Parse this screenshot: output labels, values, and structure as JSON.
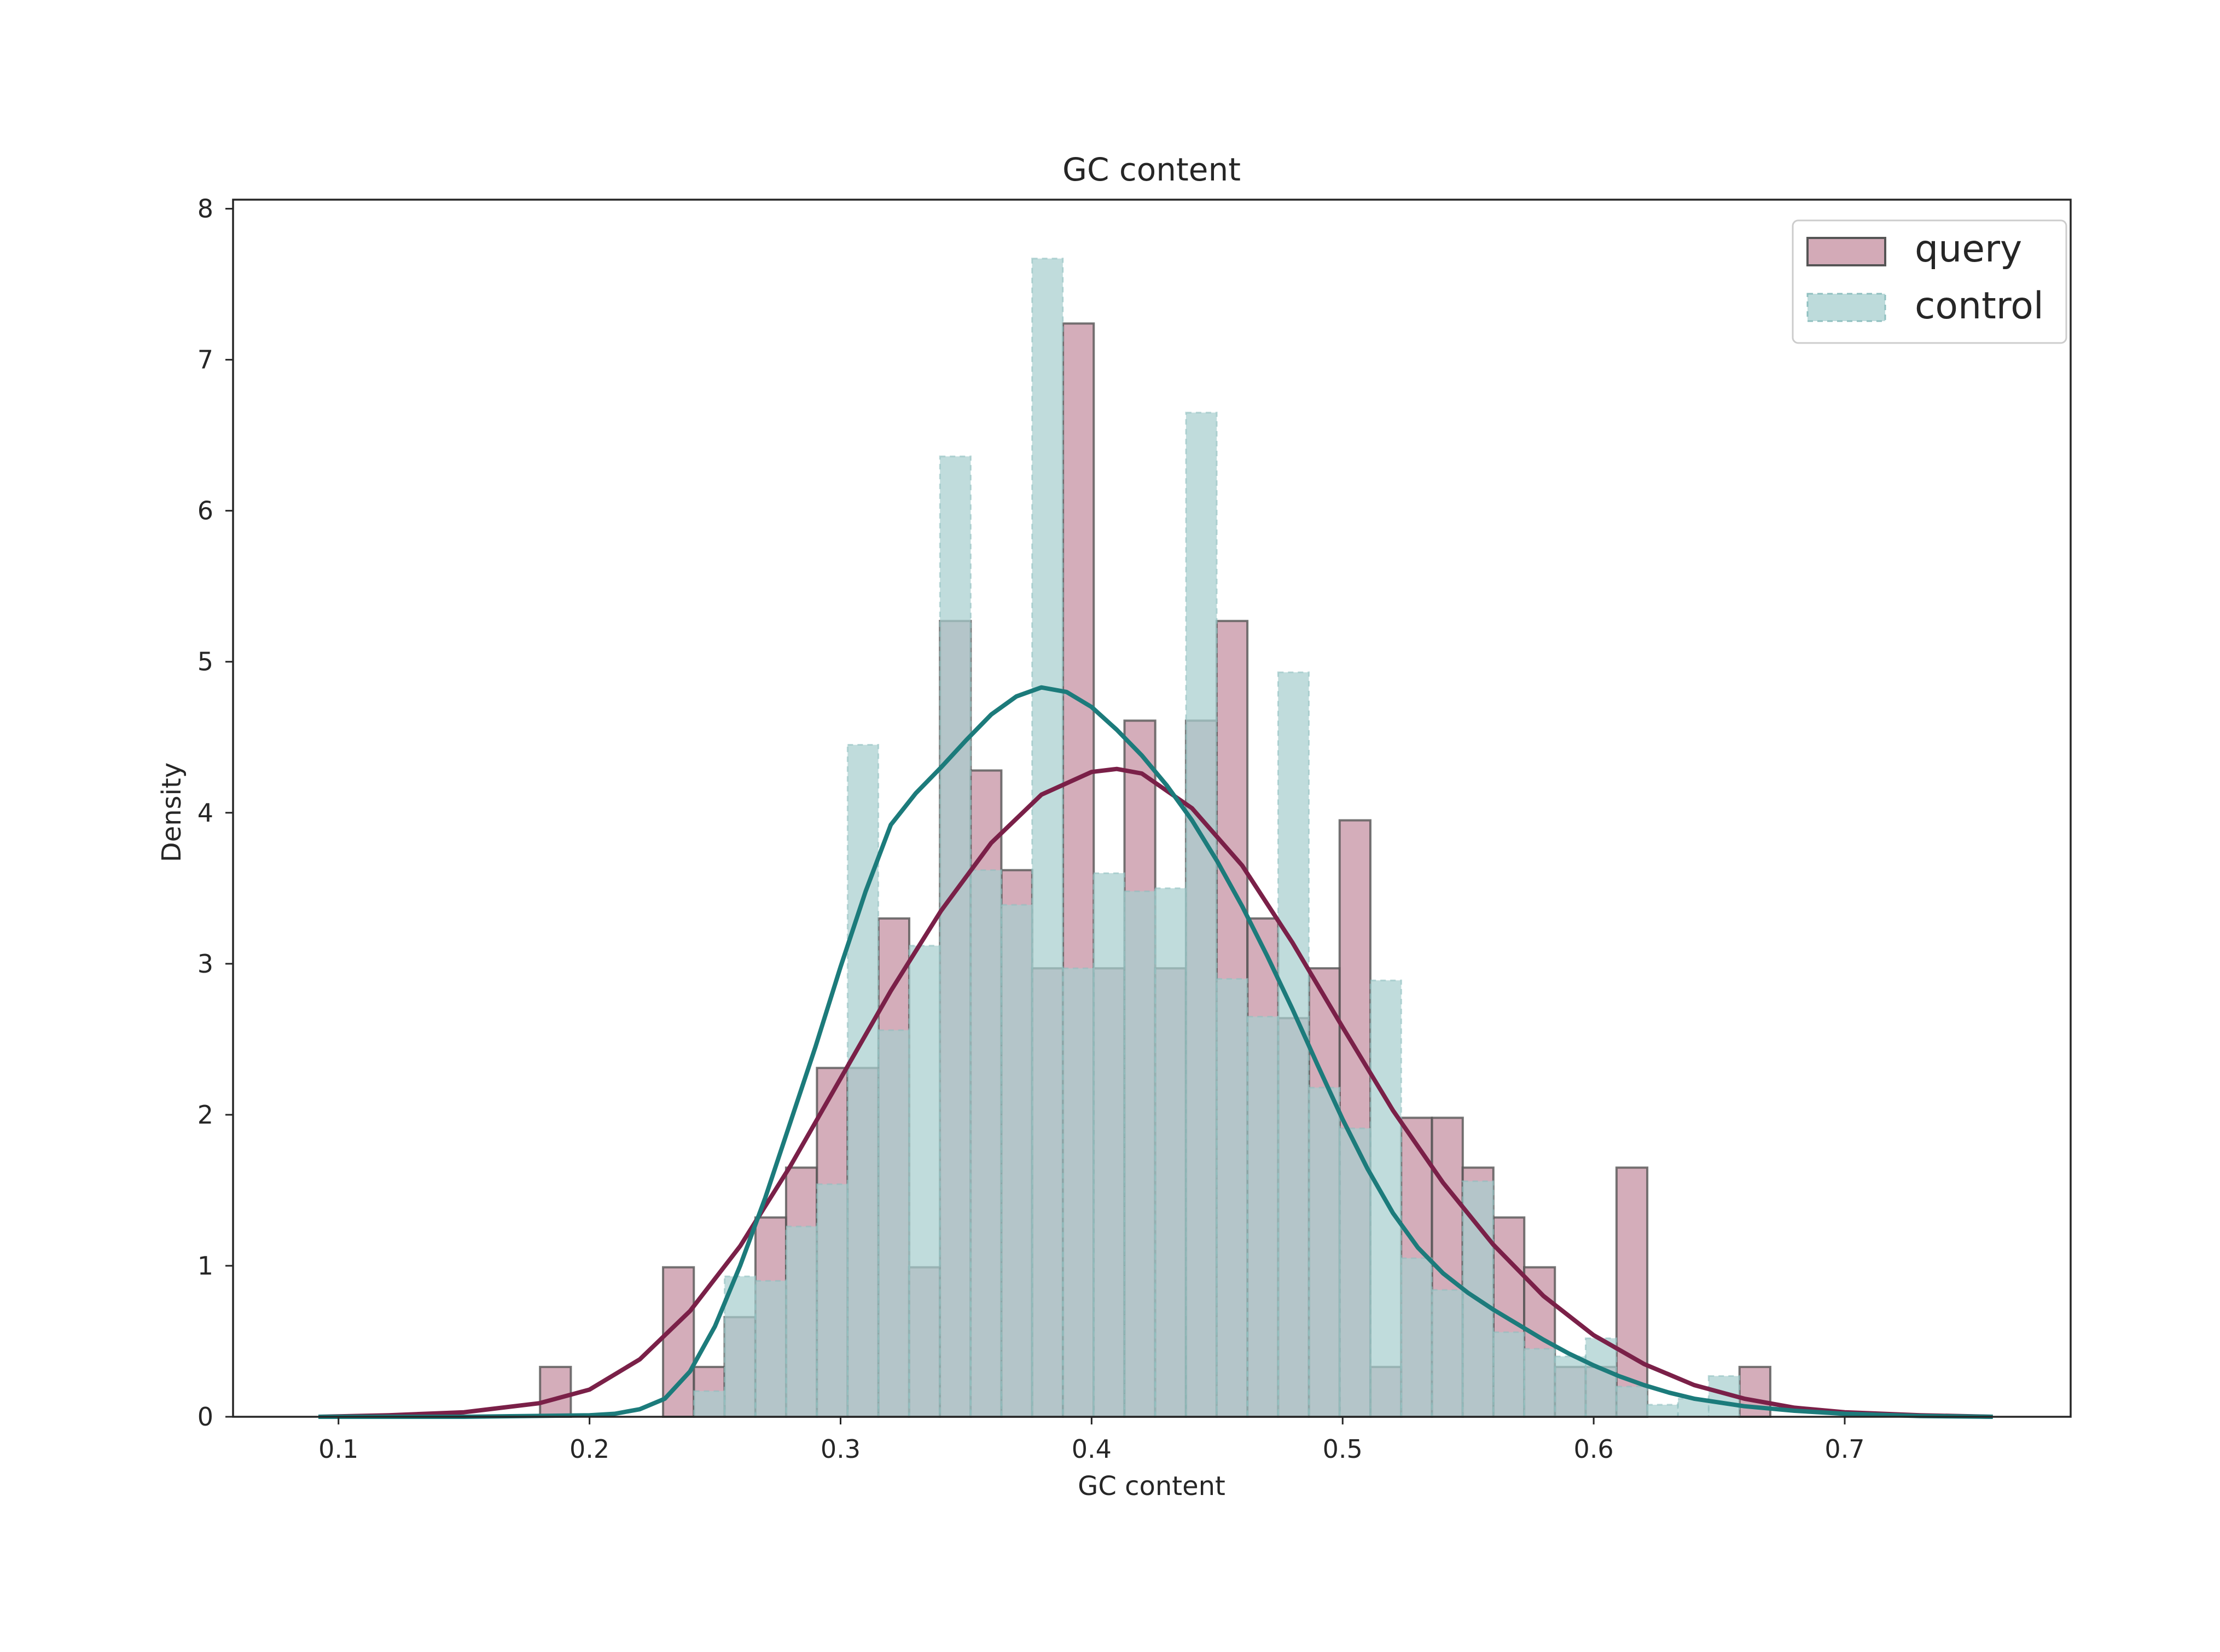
{
  "chart_data": {
    "type": "histogram",
    "title": "GC content",
    "xlabel": "GC content",
    "ylabel": "Density",
    "xlim": [
      0.058,
      0.79
    ],
    "ylim": [
      0,
      8.06
    ],
    "xticks": [
      0.1,
      0.2,
      0.3,
      0.4,
      0.5,
      0.6,
      0.7
    ],
    "xtick_labels": [
      "0.1",
      "0.2",
      "0.3",
      "0.4",
      "0.5",
      "0.6",
      "0.7"
    ],
    "yticks": [
      0,
      1,
      2,
      3,
      4,
      5,
      6,
      7,
      8
    ],
    "ytick_labels": [
      "0",
      "1",
      "2",
      "3",
      "4",
      "5",
      "6",
      "7",
      "8"
    ],
    "grid": false,
    "legend_position": "upper right",
    "series": [
      {
        "name": "query",
        "kind": "hist+kde",
        "color": "#7a2048",
        "fill": "#c48d9f",
        "edge": "#555555",
        "bin_width": 0.01225,
        "bins": [
          {
            "x0": 0.1803,
            "h": 0.33
          },
          {
            "x0": 0.2293,
            "h": 0.99
          },
          {
            "x0": 0.2416,
            "h": 0.33
          },
          {
            "x0": 0.2538,
            "h": 0.66
          },
          {
            "x0": 0.2661,
            "h": 1.32
          },
          {
            "x0": 0.2783,
            "h": 1.65
          },
          {
            "x0": 0.2906,
            "h": 2.31
          },
          {
            "x0": 0.3028,
            "h": 2.31
          },
          {
            "x0": 0.3151,
            "h": 3.3
          },
          {
            "x0": 0.3273,
            "h": 0.99
          },
          {
            "x0": 0.3396,
            "h": 5.27
          },
          {
            "x0": 0.3518,
            "h": 4.28
          },
          {
            "x0": 0.3641,
            "h": 3.62
          },
          {
            "x0": 0.3763,
            "h": 2.97
          },
          {
            "x0": 0.3886,
            "h": 7.24
          },
          {
            "x0": 0.4008,
            "h": 2.97
          },
          {
            "x0": 0.4131,
            "h": 4.61
          },
          {
            "x0": 0.4253,
            "h": 2.97
          },
          {
            "x0": 0.4376,
            "h": 4.61
          },
          {
            "x0": 0.4498,
            "h": 5.27
          },
          {
            "x0": 0.4621,
            "h": 3.3
          },
          {
            "x0": 0.4743,
            "h": 2.64
          },
          {
            "x0": 0.4866,
            "h": 2.97
          },
          {
            "x0": 0.4988,
            "h": 3.95
          },
          {
            "x0": 0.5111,
            "h": 0.33
          },
          {
            "x0": 0.5233,
            "h": 1.98
          },
          {
            "x0": 0.5356,
            "h": 1.98
          },
          {
            "x0": 0.5478,
            "h": 1.65
          },
          {
            "x0": 0.5601,
            "h": 1.32
          },
          {
            "x0": 0.5723,
            "h": 0.99
          },
          {
            "x0": 0.5846,
            "h": 0.33
          },
          {
            "x0": 0.5968,
            "h": 0.33
          },
          {
            "x0": 0.6091,
            "h": 1.65
          },
          {
            "x0": 0.6581,
            "h": 0.33
          }
        ],
        "kde": [
          [
            0.092,
            0.0
          ],
          [
            0.12,
            0.01
          ],
          [
            0.15,
            0.03
          ],
          [
            0.18,
            0.09
          ],
          [
            0.2,
            0.18
          ],
          [
            0.22,
            0.38
          ],
          [
            0.24,
            0.7
          ],
          [
            0.26,
            1.13
          ],
          [
            0.28,
            1.66
          ],
          [
            0.3,
            2.24
          ],
          [
            0.32,
            2.82
          ],
          [
            0.34,
            3.35
          ],
          [
            0.36,
            3.8
          ],
          [
            0.38,
            4.12
          ],
          [
            0.4,
            4.27
          ],
          [
            0.41,
            4.29
          ],
          [
            0.42,
            4.26
          ],
          [
            0.44,
            4.03
          ],
          [
            0.46,
            3.65
          ],
          [
            0.48,
            3.14
          ],
          [
            0.5,
            2.58
          ],
          [
            0.52,
            2.03
          ],
          [
            0.54,
            1.55
          ],
          [
            0.56,
            1.14
          ],
          [
            0.58,
            0.8
          ],
          [
            0.6,
            0.54
          ],
          [
            0.62,
            0.35
          ],
          [
            0.64,
            0.21
          ],
          [
            0.66,
            0.12
          ],
          [
            0.68,
            0.06
          ],
          [
            0.7,
            0.03
          ],
          [
            0.73,
            0.01
          ],
          [
            0.759,
            0.0
          ]
        ]
      },
      {
        "name": "control",
        "kind": "hist+kde",
        "color": "#1c7b7b",
        "fill": "#a7cfcf",
        "edge": "#a7cfcf",
        "bin_width": 0.01225,
        "bins": [
          {
            "x0": 0.2416,
            "h": 0.17
          },
          {
            "x0": 0.2538,
            "h": 0.93
          },
          {
            "x0": 0.2661,
            "h": 0.9
          },
          {
            "x0": 0.2783,
            "h": 1.26
          },
          {
            "x0": 0.2906,
            "h": 1.54
          },
          {
            "x0": 0.3028,
            "h": 4.45
          },
          {
            "x0": 0.3151,
            "h": 2.56
          },
          {
            "x0": 0.3273,
            "h": 3.12
          },
          {
            "x0": 0.3396,
            "h": 6.36
          },
          {
            "x0": 0.3518,
            "h": 3.62
          },
          {
            "x0": 0.3641,
            "h": 3.39
          },
          {
            "x0": 0.3763,
            "h": 7.67
          },
          {
            "x0": 0.3886,
            "h": 2.97
          },
          {
            "x0": 0.4008,
            "h": 3.6
          },
          {
            "x0": 0.4131,
            "h": 3.48
          },
          {
            "x0": 0.4253,
            "h": 3.5
          },
          {
            "x0": 0.4376,
            "h": 6.65
          },
          {
            "x0": 0.4498,
            "h": 2.9
          },
          {
            "x0": 0.4621,
            "h": 2.65
          },
          {
            "x0": 0.4743,
            "h": 4.93
          },
          {
            "x0": 0.4866,
            "h": 2.18
          },
          {
            "x0": 0.4988,
            "h": 1.91
          },
          {
            "x0": 0.5111,
            "h": 2.89
          },
          {
            "x0": 0.5233,
            "h": 1.05
          },
          {
            "x0": 0.5356,
            "h": 0.84
          },
          {
            "x0": 0.5478,
            "h": 1.56
          },
          {
            "x0": 0.5601,
            "h": 0.56
          },
          {
            "x0": 0.5723,
            "h": 0.45
          },
          {
            "x0": 0.5846,
            "h": 0.4
          },
          {
            "x0": 0.5968,
            "h": 0.52
          },
          {
            "x0": 0.6091,
            "h": 0.2
          },
          {
            "x0": 0.6213,
            "h": 0.08
          },
          {
            "x0": 0.6336,
            "h": 0.12
          },
          {
            "x0": 0.6458,
            "h": 0.27
          }
        ],
        "kde": [
          [
            0.092,
            0.0
          ],
          [
            0.15,
            0.0
          ],
          [
            0.2,
            0.01
          ],
          [
            0.21,
            0.02
          ],
          [
            0.22,
            0.05
          ],
          [
            0.23,
            0.12
          ],
          [
            0.24,
            0.3
          ],
          [
            0.25,
            0.6
          ],
          [
            0.26,
            1.0
          ],
          [
            0.27,
            1.45
          ],
          [
            0.28,
            1.95
          ],
          [
            0.29,
            2.45
          ],
          [
            0.3,
            2.98
          ],
          [
            0.31,
            3.48
          ],
          [
            0.32,
            3.92
          ],
          [
            0.33,
            4.13
          ],
          [
            0.34,
            4.3
          ],
          [
            0.35,
            4.48
          ],
          [
            0.36,
            4.65
          ],
          [
            0.37,
            4.77
          ],
          [
            0.38,
            4.83
          ],
          [
            0.39,
            4.8
          ],
          [
            0.4,
            4.7
          ],
          [
            0.41,
            4.55
          ],
          [
            0.42,
            4.38
          ],
          [
            0.43,
            4.18
          ],
          [
            0.44,
            3.95
          ],
          [
            0.45,
            3.68
          ],
          [
            0.46,
            3.38
          ],
          [
            0.47,
            3.05
          ],
          [
            0.48,
            2.7
          ],
          [
            0.49,
            2.33
          ],
          [
            0.5,
            1.97
          ],
          [
            0.51,
            1.64
          ],
          [
            0.52,
            1.35
          ],
          [
            0.53,
            1.12
          ],
          [
            0.54,
            0.95
          ],
          [
            0.55,
            0.82
          ],
          [
            0.56,
            0.71
          ],
          [
            0.57,
            0.61
          ],
          [
            0.58,
            0.51
          ],
          [
            0.59,
            0.42
          ],
          [
            0.6,
            0.34
          ],
          [
            0.61,
            0.27
          ],
          [
            0.62,
            0.21
          ],
          [
            0.63,
            0.16
          ],
          [
            0.64,
            0.12
          ],
          [
            0.66,
            0.07
          ],
          [
            0.68,
            0.04
          ],
          [
            0.7,
            0.02
          ],
          [
            0.73,
            0.005
          ],
          [
            0.759,
            0.0
          ]
        ]
      }
    ]
  }
}
